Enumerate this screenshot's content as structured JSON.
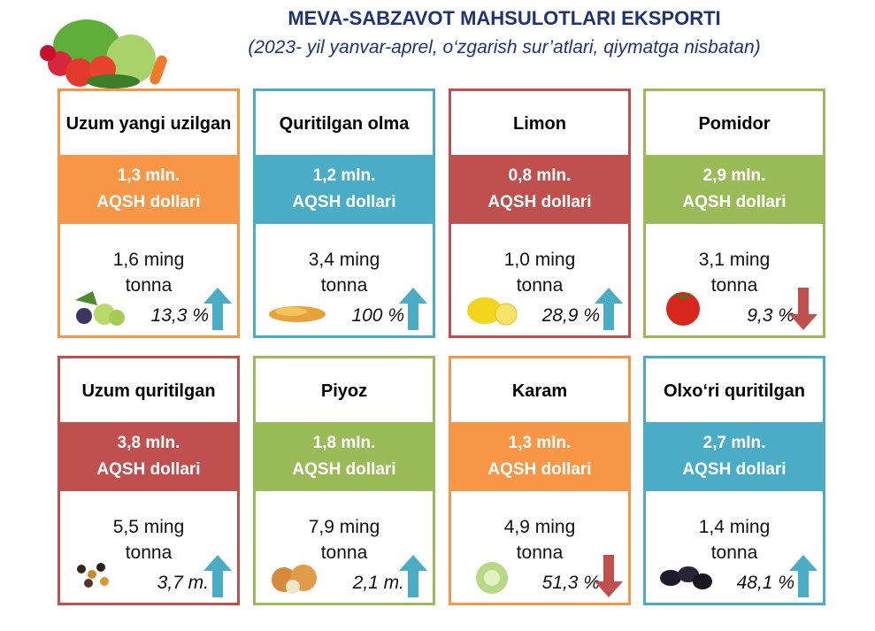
{
  "header": {
    "title": "MEVA-SABZAVOT MAHSULOTLARI EKSPORTI",
    "subtitle": "(2023- yil yanvar-aprel, o‘zgarish sur’atlari, qiymatga nisbatan)"
  },
  "colors": {
    "orange": "#F79646",
    "blue": "#4BACC6",
    "red": "#C0504D",
    "green": "#9BBB59"
  },
  "cards": [
    {
      "name": "Uzum yangi uzilgan",
      "value": "1,3 mln.",
      "unit": "AQSH dollari",
      "qty": "1,6 ming",
      "qty_unit": "tonna",
      "change": "13,3 %",
      "direction": "up",
      "color": "orange",
      "icon": "grapes-icon"
    },
    {
      "name": "Quritilgan olma",
      "value": "1,2 mln.",
      "unit": "AQSH dollari",
      "qty": "3,4 ming",
      "qty_unit": "tonna",
      "change": "100 %",
      "direction": "up",
      "color": "blue",
      "icon": "dried-apple-icon"
    },
    {
      "name": "Limon",
      "value": "0,8 mln.",
      "unit": "AQSH dollari",
      "qty": "1,0 ming",
      "qty_unit": "tonna",
      "change": "28,9 %",
      "direction": "up",
      "color": "red",
      "icon": "lemon-icon"
    },
    {
      "name": "Pomidor",
      "value": "2,9 mln.",
      "unit": "AQSH dollari",
      "qty": "3,1 ming",
      "qty_unit": "tonna",
      "change": "9,3 %",
      "direction": "down",
      "color": "green",
      "icon": "tomato-icon"
    },
    {
      "name": "Uzum quritilgan",
      "value": "3,8 mln.",
      "unit": "AQSH dollari",
      "qty": "5,5 ming",
      "qty_unit": "tonna",
      "change": "3,7 m.",
      "direction": "up",
      "color": "red",
      "icon": "raisins-icon"
    },
    {
      "name": "Piyoz",
      "value": "1,8 mln.",
      "unit": "AQSH dollari",
      "qty": "7,9  ming",
      "qty_unit": "tonna",
      "change": "2,1  m.",
      "direction": "up",
      "color": "green",
      "icon": "onion-icon"
    },
    {
      "name": "Karam",
      "value": "1,3 mln.",
      "unit": "AQSH dollari",
      "qty": "4,9 ming",
      "qty_unit": "tonna",
      "change": "51,3 %",
      "direction": "down",
      "color": "orange",
      "icon": "cabbage-icon"
    },
    {
      "name": "Olxo‘ri quritilgan",
      "value": "2,7 mln.",
      "unit": "AQSH dollari",
      "qty": "1,4 ming",
      "qty_unit": "tonna",
      "change": "48,1 %",
      "direction": "up",
      "color": "blue",
      "icon": "prunes-icon"
    }
  ]
}
